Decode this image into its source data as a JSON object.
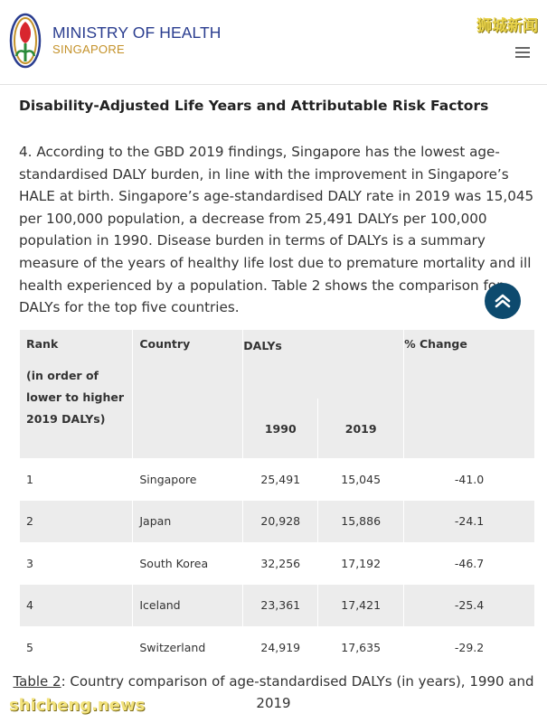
{
  "header": {
    "logo_line1": "MINISTRY OF HEALTH",
    "logo_line2": "SINGAPORE",
    "watermark": "狮城新闻"
  },
  "article": {
    "heading": "Disability-Adjusted Life Years and Attributable Risk Factors",
    "paragraph": "4. According to the GBD 2019 findings, Singapore has the lowest age-standardised DALY burden, in line with the improvement in Singapore’s HALE at birth. Singapore’s age-standardised DALY rate in 2019 was 15,045 per 100,000 population, a decrease from 25,491 DALYs per 100,000 population in 1990. Disease burden in terms of DALYs is a summary measure of the years of healthy life lost due to premature mortality and ill health experienced by a population. Table 2 shows the comparison for DALYs for the top five countries."
  },
  "table": {
    "headers": {
      "rank": "Rank",
      "rank_note": "(in order of lower to higher 2019 DALYs)",
      "country": "Country",
      "dalys": "DALYs",
      "y1990": "1990",
      "y2019": "2019",
      "change": "% Change"
    },
    "rows": [
      {
        "rank": "1",
        "country": "Singapore",
        "d1990": "25,491",
        "d2019": "15,045",
        "change": "-41.0"
      },
      {
        "rank": "2",
        "country": "Japan",
        "d1990": "20,928",
        "d2019": "15,886",
        "change": "-24.1"
      },
      {
        "rank": "3",
        "country": "South Korea",
        "d1990": "32,256",
        "d2019": "17,192",
        "change": "-46.7"
      },
      {
        "rank": "4",
        "country": "Iceland",
        "d1990": "23,361",
        "d2019": "17,421",
        "change": "-25.4"
      },
      {
        "rank": "5",
        "country": "Switzerland",
        "d1990": "24,919",
        "d2019": "17,635",
        "change": "-29.2"
      }
    ]
  },
  "caption": {
    "link": "Table 2",
    "text": ": Country comparison of age-standardised DALYs (in years), 1990 and 2019"
  },
  "watermark_bottom": "shicheng.news",
  "icons": {
    "menu": "hamburger-menu-icon",
    "scroll_top": "double-chevron-up-icon",
    "logo": "moh-emblem-icon"
  },
  "colors": {
    "brand_blue": "#2a3d8f",
    "brand_gold": "#c4922a",
    "scroll_button": "#0d4a6e",
    "table_stripe": "#ececec"
  }
}
